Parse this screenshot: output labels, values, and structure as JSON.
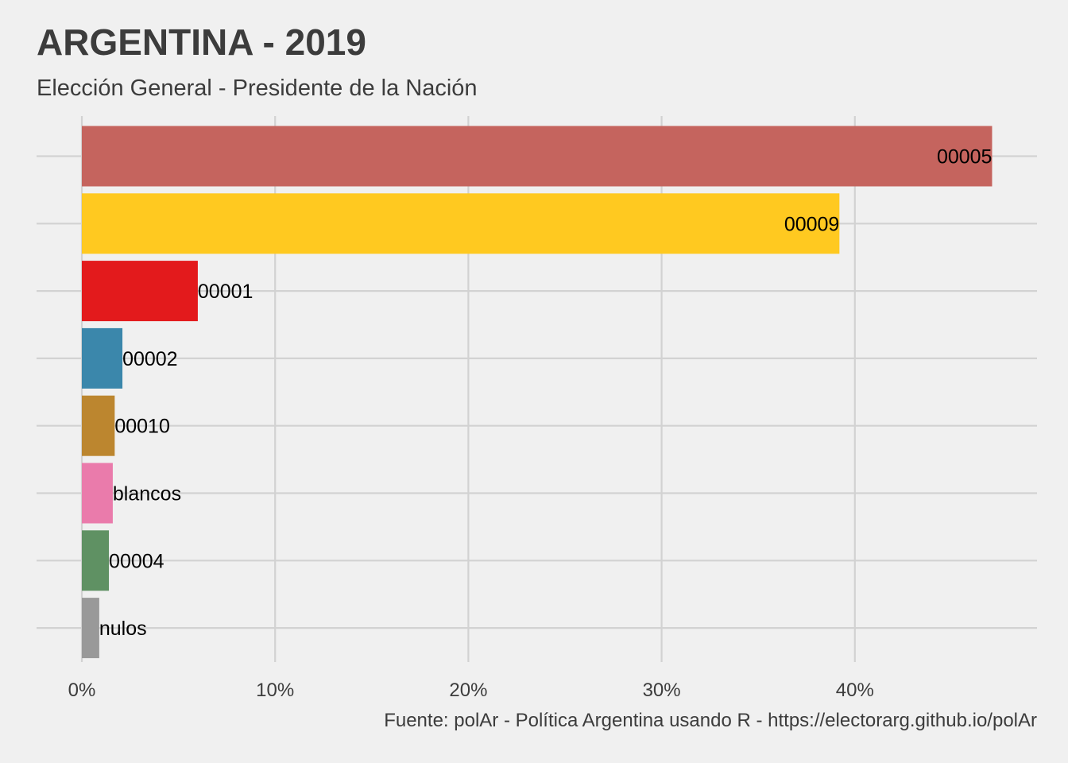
{
  "title": "ARGENTINA - 2019",
  "subtitle": "Elección General - Presidente de la Nación",
  "caption": "Fuente: polAr - Política Argentina usando R - https://electorarg.github.io/polAr",
  "chart_data": {
    "type": "bar",
    "orientation": "horizontal",
    "categories": [
      "00005",
      "00009",
      "00001",
      "00002",
      "00010",
      "blancos",
      "00004",
      "nulos"
    ],
    "values": [
      47.1,
      39.2,
      6.0,
      2.1,
      1.7,
      1.6,
      1.4,
      0.9
    ],
    "colors": [
      "#c5645e",
      "#ffc920",
      "#e31a1c",
      "#3b87ab",
      "#bc862f",
      "#ea7bab",
      "#5f9163",
      "#999999"
    ],
    "x_ticks": [
      0,
      10,
      20,
      30,
      40
    ],
    "x_tick_labels": [
      "0%",
      "10%",
      "20%",
      "30%",
      "40%"
    ],
    "xlim": [
      0,
      49.5
    ],
    "xlabel": "",
    "ylabel": "",
    "grid": true,
    "legend": "none"
  }
}
